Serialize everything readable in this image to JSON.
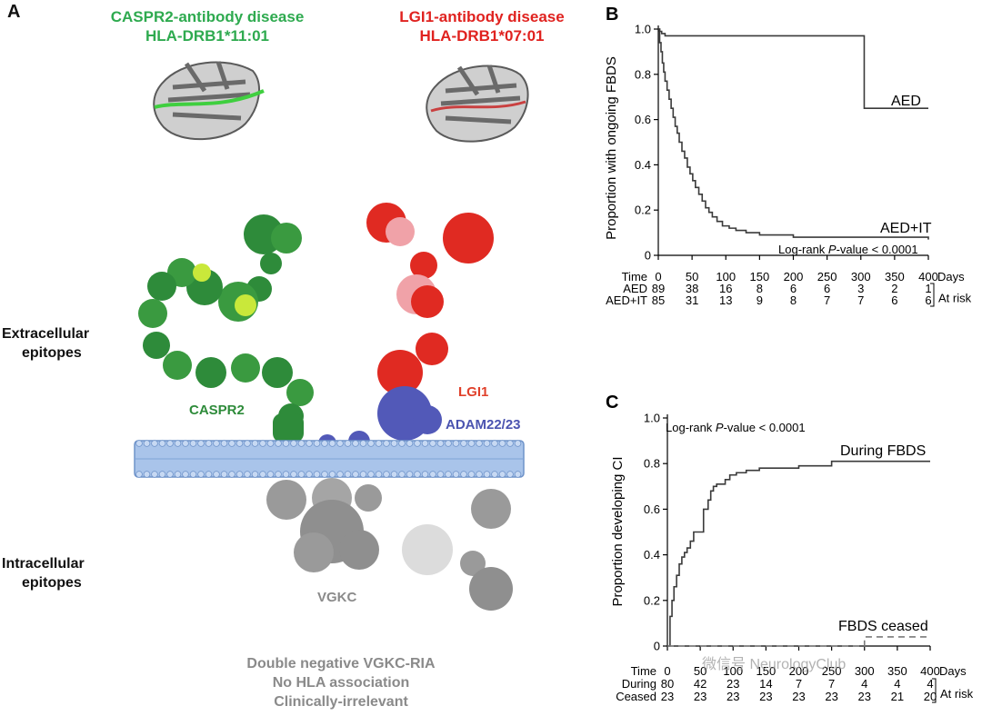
{
  "panel_a": {
    "letter": "A",
    "caspr2_header": {
      "line1": "CASPR2-antibody disease",
      "line2": "HLA-DRB1*11:01"
    },
    "lgi1_header": {
      "line1": "LGI1-antibody disease",
      "line2": "HLA-DRB1*07:01"
    },
    "extracellular": {
      "line1": "Extracellular",
      "line2": "epitopes"
    },
    "intracellular": {
      "line1": "Intracellular",
      "line2": "epitopes"
    },
    "labels": {
      "caspr2": "CASPR2",
      "lgi1": "LGI1",
      "adam": "ADAM22/23",
      "vgkc": "VGKC"
    },
    "footer": {
      "line1": "Double negative VGKC-RIA",
      "line2": "No HLA association",
      "line3": "Clinically-irrelevant"
    },
    "colors": {
      "green": "#2eaa4f",
      "red": "#e0221f",
      "blue": "#4b54b0",
      "grey": "#8a8a8a",
      "membrane": "#a9c4ea"
    }
  },
  "panel_b": {
    "letter": "B",
    "ylabel": "Proportion with ongoing FBDS",
    "pvalue_prefix": "Log-rank ",
    "pvalue_p": "P",
    "pvalue_suffix": "-value < 0.0001",
    "curve_labels": {
      "aed": "AED",
      "aedit": "AED+IT"
    },
    "risk": {
      "time_label": "Time",
      "days_label": "Days",
      "at_risk": "At risk",
      "rows": [
        {
          "label": "AED",
          "values": [
            "89",
            "38",
            "16",
            "8",
            "6",
            "6",
            "3",
            "2",
            "1"
          ]
        },
        {
          "label": "AED+IT",
          "values": [
            "85",
            "31",
            "13",
            "9",
            "8",
            "7",
            "7",
            "6",
            "6"
          ]
        }
      ]
    }
  },
  "panel_c": {
    "letter": "C",
    "ylabel": "Proportion developing CI",
    "pvalue_prefix": "Log-rank ",
    "pvalue_p": "P",
    "pvalue_suffix": "-value < 0.0001",
    "curve_labels": {
      "during": "During FBDS",
      "ceased": "FBDS ceased"
    },
    "risk": {
      "time_label": "Time",
      "days_label": "Days",
      "at_risk": "At risk",
      "rows": [
        {
          "label": "During",
          "values": [
            "80",
            "42",
            "23",
            "14",
            "7",
            "7",
            "4",
            "4",
            "4"
          ]
        },
        {
          "label": "Ceased",
          "values": [
            "23",
            "23",
            "23",
            "23",
            "23",
            "23",
            "23",
            "21",
            "20"
          ]
        }
      ]
    },
    "watermark": "微信号 NeurologyClub"
  },
  "chart_data": [
    {
      "type": "line",
      "title": "",
      "xlabel": "Days",
      "ylabel": "Proportion with ongoing FBDS",
      "xlim": [
        0,
        400
      ],
      "ylim": [
        0,
        1.0
      ],
      "xticks": [
        "0",
        "50",
        "100",
        "150",
        "200",
        "250",
        "300",
        "350",
        "400"
      ],
      "yticks": [
        "0",
        "0.2",
        "0.4",
        "0.6",
        "0.8",
        "1.0"
      ],
      "series": [
        {
          "name": "AED",
          "step": true,
          "x": [
            0,
            2,
            5,
            10,
            305,
            400
          ],
          "y": [
            1.0,
            0.99,
            0.98,
            0.97,
            0.65,
            0.65
          ]
        },
        {
          "name": "AED+IT",
          "step": true,
          "x": [
            0,
            2,
            4,
            6,
            8,
            10,
            13,
            16,
            19,
            22,
            25,
            28,
            31,
            35,
            39,
            43,
            47,
            51,
            55,
            60,
            65,
            70,
            75,
            80,
            87,
            95,
            105,
            115,
            130,
            150,
            175,
            200,
            240,
            300,
            400
          ],
          "y": [
            1.0,
            0.94,
            0.9,
            0.85,
            0.81,
            0.77,
            0.73,
            0.69,
            0.65,
            0.61,
            0.57,
            0.54,
            0.5,
            0.46,
            0.43,
            0.39,
            0.36,
            0.33,
            0.3,
            0.27,
            0.24,
            0.21,
            0.19,
            0.17,
            0.15,
            0.13,
            0.12,
            0.11,
            0.1,
            0.09,
            0.09,
            0.08,
            0.08,
            0.08,
            0.07
          ]
        }
      ]
    },
    {
      "type": "line",
      "title": "",
      "xlabel": "Days",
      "ylabel": "Proportion developing CI",
      "xlim": [
        0,
        400
      ],
      "ylim": [
        0,
        1.0
      ],
      "xticks": [
        "0",
        "50",
        "100",
        "150",
        "200",
        "250",
        "300",
        "350",
        "400"
      ],
      "yticks": [
        "0",
        "0.2",
        "0.4",
        "0.6",
        "0.8",
        "1.0"
      ],
      "series": [
        {
          "name": "During FBDS",
          "step": true,
          "x": [
            0,
            4,
            7,
            10,
            14,
            18,
            22,
            26,
            30,
            35,
            40,
            45,
            55,
            62,
            66,
            70,
            75,
            80,
            88,
            95,
            105,
            120,
            140,
            160,
            200,
            250,
            280,
            400
          ],
          "y": [
            0,
            0.13,
            0.2,
            0.26,
            0.31,
            0.36,
            0.39,
            0.41,
            0.43,
            0.46,
            0.5,
            0.5,
            0.6,
            0.64,
            0.68,
            0.7,
            0.71,
            0.71,
            0.73,
            0.75,
            0.76,
            0.77,
            0.78,
            0.78,
            0.79,
            0.81,
            0.81,
            0.81
          ]
        },
        {
          "name": "FBDS ceased",
          "step": true,
          "dashed": true,
          "x": [
            0,
            300,
            400
          ],
          "y": [
            0,
            0.04,
            0.04
          ]
        }
      ]
    }
  ]
}
